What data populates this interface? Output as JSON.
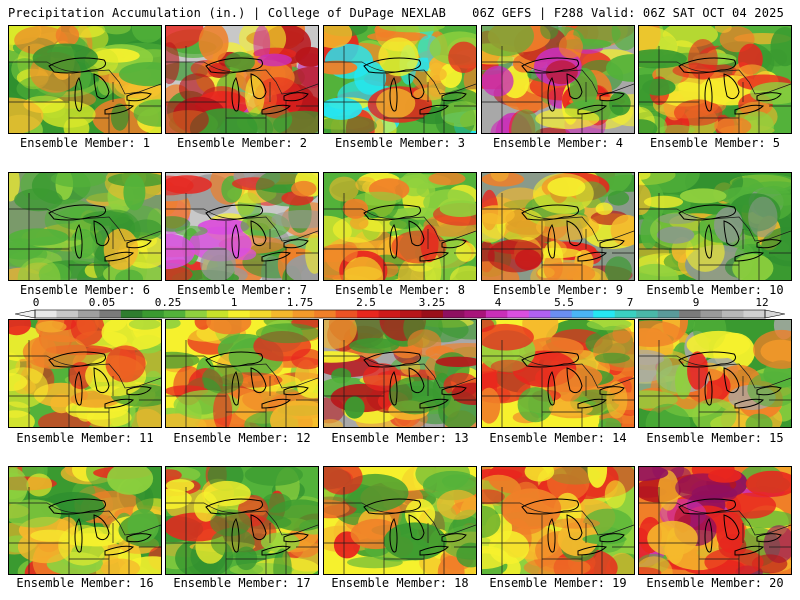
{
  "header": {
    "left_title": "Precipitation Accumulation (in.) | College of DuPage NEXLAB",
    "right_title": "06Z GEFS | F288 Valid: 06Z SAT OCT 04 2025"
  },
  "members": [
    {
      "label": "Ensemble Member: 1",
      "colors": [
        "#3a9a30",
        "#53b23a",
        "#2f8f2f",
        "#8fd13e",
        "#d9e82a",
        "#f6f12d",
        "#f5b82c",
        "#f07f28"
      ]
    },
    {
      "label": "Ensemble Member: 2",
      "colors": [
        "#c8c8c8",
        "#3a9a30",
        "#53b23a",
        "#f6f12d",
        "#f07f28",
        "#e8261e",
        "#b8151a",
        "#c92fb8"
      ]
    },
    {
      "label": "Ensemble Member: 3",
      "colors": [
        "#53b23a",
        "#8fd13e",
        "#f6f12d",
        "#f5b82c",
        "#f07f28",
        "#e8261e",
        "#2f8f2f",
        "#25e6f2"
      ]
    },
    {
      "label": "Ensemble Member: 4",
      "colors": [
        "#a8a8a8",
        "#3a9a30",
        "#53b23a",
        "#f6f12d",
        "#f07f28",
        "#e8261e",
        "#b8151a",
        "#c92fb8"
      ]
    },
    {
      "label": "Ensemble Member: 5",
      "colors": [
        "#53b23a",
        "#8fd13e",
        "#f6f12d",
        "#f5b82c",
        "#f07f28",
        "#e8261e",
        "#3a9a30",
        "#f6f12d"
      ]
    },
    {
      "label": "Ensemble Member: 6",
      "colors": [
        "#7a9a6a",
        "#3a9a30",
        "#53b23a",
        "#8fd13e",
        "#2f8f2f",
        "#f6f12d",
        "#53b23a",
        "#f5b82c"
      ]
    },
    {
      "label": "Ensemble Member: 7",
      "colors": [
        "#c8c8c8",
        "#9a9a9a",
        "#3a9a30",
        "#53b23a",
        "#f6f12d",
        "#f07f28",
        "#e8261e",
        "#d94fe0"
      ]
    },
    {
      "label": "Ensemble Member: 8",
      "colors": [
        "#53b23a",
        "#8fd13e",
        "#f6f12d",
        "#f5b82c",
        "#f07f28",
        "#e8261e",
        "#3a9a30",
        "#f6f12d"
      ]
    },
    {
      "label": "Ensemble Member: 9",
      "colors": [
        "#8a9a8a",
        "#3a9a30",
        "#53b23a",
        "#f6f12d",
        "#f5b82c",
        "#f07f28",
        "#e8261e",
        "#b8151a"
      ]
    },
    {
      "label": "Ensemble Member: 10",
      "colors": [
        "#3a9a30",
        "#53b23a",
        "#8fd13e",
        "#2f8f2f",
        "#f6f12d",
        "#53b23a",
        "#8a9a8a",
        "#f5b82c"
      ]
    },
    {
      "label": "Ensemble Member: 11",
      "colors": [
        "#53b23a",
        "#8fd13e",
        "#f6f12d",
        "#f5b82c",
        "#f07f28",
        "#e8261e",
        "#3a9a30",
        "#f6f12d"
      ]
    },
    {
      "label": "Ensemble Member: 12",
      "colors": [
        "#f6f12d",
        "#f5b82c",
        "#53b23a",
        "#8fd13e",
        "#f07f28",
        "#e8261e",
        "#3a9a30",
        "#f6f12d"
      ]
    },
    {
      "label": "Ensemble Member: 13",
      "colors": [
        "#a8a8a8",
        "#3a9a30",
        "#53b23a",
        "#f6f12d",
        "#f5b82c",
        "#f07f28",
        "#e8261e",
        "#b8151a"
      ]
    },
    {
      "label": "Ensemble Member: 14",
      "colors": [
        "#f6f12d",
        "#f5b82c",
        "#53b23a",
        "#3a9a30",
        "#f07f28",
        "#e8261e",
        "#8fd13e",
        "#f6f12d"
      ]
    },
    {
      "label": "Ensemble Member: 15",
      "colors": [
        "#3a9a30",
        "#53b23a",
        "#f6f12d",
        "#f5b82c",
        "#f07f28",
        "#e8261e",
        "#a8a8a8",
        "#8fd13e"
      ]
    },
    {
      "label": "Ensemble Member: 16",
      "colors": [
        "#3a9a30",
        "#53b23a",
        "#8fd13e",
        "#f6f12d",
        "#f5b82c",
        "#f07f28",
        "#2f8f2f",
        "#e8261e"
      ]
    },
    {
      "label": "Ensemble Member: 17",
      "colors": [
        "#53b23a",
        "#3a9a30",
        "#8fd13e",
        "#f6f12d",
        "#f5b82c",
        "#f07f28",
        "#2f8f2f",
        "#e8261e"
      ]
    },
    {
      "label": "Ensemble Member: 18",
      "colors": [
        "#f6f12d",
        "#f5b82c",
        "#53b23a",
        "#3a9a30",
        "#f07f28",
        "#8fd13e",
        "#e8261e",
        "#f6f12d"
      ]
    },
    {
      "label": "Ensemble Member: 19",
      "colors": [
        "#8fd13e",
        "#f6f12d",
        "#f5b82c",
        "#53b23a",
        "#3a9a30",
        "#f07f28",
        "#e8261e",
        "#f6f12d"
      ]
    },
    {
      "label": "Ensemble Member: 20",
      "colors": [
        "#f07f28",
        "#e8261e",
        "#b8151a",
        "#f6f12d",
        "#53b23a",
        "#c92fb8",
        "#f5b82c",
        "#8e0f60"
      ]
    }
  ],
  "colorbar": {
    "labels": [
      "0",
      "0.05",
      "0.25",
      "1",
      "1.75",
      "2.5",
      "3.25",
      "4",
      "5.5",
      "7",
      "9",
      "12"
    ],
    "colors": [
      "#e8e8e8",
      "#c8c8c8",
      "#a0a0a0",
      "#7a7a7a",
      "#2f7d2f",
      "#3a9a30",
      "#53b23a",
      "#8fd13e",
      "#c8e22a",
      "#f6f12d",
      "#f5d82c",
      "#f5b82c",
      "#f39a2a",
      "#f07f28",
      "#ec5224",
      "#e8261e",
      "#cf1a1a",
      "#b8151a",
      "#9a0f1a",
      "#8e0f60",
      "#a8147a",
      "#c92fb8",
      "#d94fe0",
      "#b060f0",
      "#6a8ef0",
      "#4ab4f5",
      "#25e6f2",
      "#3ad0c0",
      "#4ab8a8",
      "#5a9a9a",
      "#7a7a7a",
      "#9a9a9a",
      "#b8b8b8",
      "#d0d0d0"
    ]
  }
}
